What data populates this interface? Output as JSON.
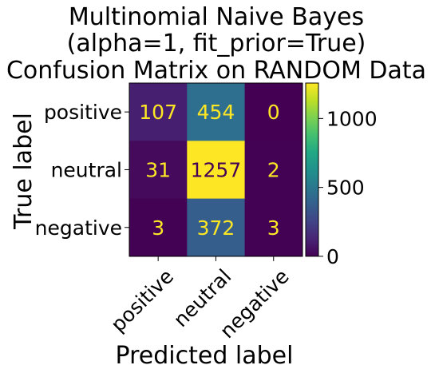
{
  "chart_data": {
    "type": "heatmap",
    "title_lines": [
      "Multinomial Naive Bayes",
      "(alpha=1, fit_prior=True)",
      "Confusion Matrix on RANDOM Data"
    ],
    "xlabel": "Predicted label",
    "ylabel": "True label",
    "x_categories": [
      "positive",
      "neutral",
      "negative"
    ],
    "y_categories": [
      "positive",
      "neutral",
      "negative"
    ],
    "values": [
      [
        107,
        454,
        0
      ],
      [
        31,
        1257,
        2
      ],
      [
        3,
        372,
        3
      ]
    ],
    "value_range": [
      0,
      1257
    ],
    "colormap": "viridis",
    "colorbar": {
      "ticks": [
        0,
        500,
        1000
      ],
      "tick_labels": [
        "0",
        "500",
        "1000"
      ]
    },
    "label_colors": {
      "on_dark": "#fde725",
      "on_light": "#440154"
    },
    "grid": false
  }
}
